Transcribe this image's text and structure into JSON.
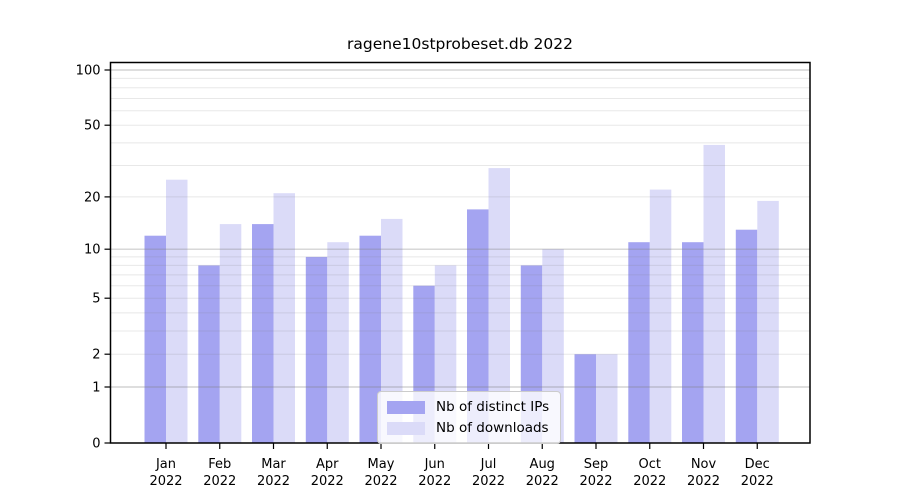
{
  "page": {
    "background_color": "#ffffff"
  },
  "chart_data": {
    "type": "bar",
    "title": "ragene10stprobeset.db 2022",
    "xlabel": "",
    "ylabel": "",
    "year": "2022",
    "categories": [
      "Jan",
      "Feb",
      "Mar",
      "Apr",
      "May",
      "Jun",
      "Jul",
      "Aug",
      "Sep",
      "Oct",
      "Nov",
      "Dec"
    ],
    "series": [
      {
        "name": "Nb of distinct IPs",
        "color": "#a4a4f1",
        "values": [
          12,
          8,
          14,
          9,
          12,
          6,
          17,
          8,
          2,
          11,
          11,
          13
        ]
      },
      {
        "name": "Nb of downloads",
        "color": "#dbdbf8",
        "values": [
          25,
          14,
          21,
          11,
          15,
          8,
          29,
          10,
          2,
          22,
          39,
          19
        ]
      }
    ],
    "yscale": "log10(value+1)",
    "ylim": [
      0,
      110
    ],
    "yticks": [
      100,
      50,
      20,
      10,
      5,
      2,
      1,
      0
    ],
    "major_gridlines": [
      1,
      10,
      100
    ],
    "minor_gridlines": [
      2,
      3,
      4,
      5,
      6,
      7,
      8,
      9,
      20,
      30,
      40,
      50,
      60,
      70,
      80,
      90
    ],
    "grid": true,
    "legend_position": "bottom-center",
    "colors": {
      "axis": "#000000",
      "tick_label": "#000000",
      "grid_major": "#c9c9c9",
      "grid_minor": "#e8e8e8",
      "legend_border": "#cccccc"
    }
  }
}
